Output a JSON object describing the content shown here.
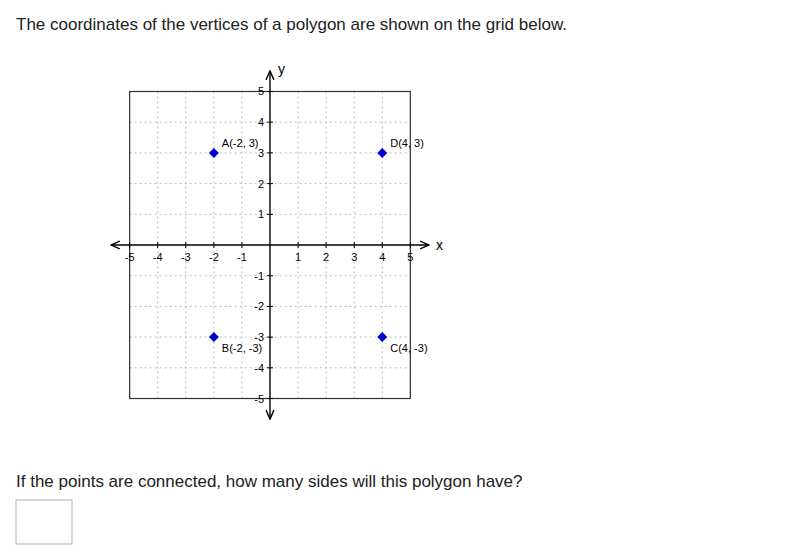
{
  "chart_data": {
    "type": "scatter",
    "title": "The coordinates of the vertices of a polygon are shown on the grid below.",
    "annotations": [
      "If the points are connected, how many sides will this polygon have?"
    ],
    "x_label": "x",
    "y_label": "y",
    "series": [
      {
        "x": [
          -2,
          4,
          -2,
          4
        ],
        "values": [
          3,
          3,
          -3,
          -3
        ],
        "value_labels": [
          "A(-2, 3)",
          "D(4, 3)",
          "B(-2, -3)",
          "C(4, -3)"
        ],
        "color": "#0000CC",
        "marker": "diamond"
      }
    ],
    "data_labels": true,
    "xlim": [
      -5.7,
      5.7
    ],
    "ylim": [
      -5.7,
      5.7
    ],
    "xticks": [
      -5,
      -4,
      -3,
      -2,
      -1,
      1,
      2,
      3,
      4,
      5
    ],
    "yticks": [
      -5,
      -4,
      -3,
      -2,
      -1,
      1,
      2,
      3,
      4,
      5
    ],
    "grid": true
  }
}
